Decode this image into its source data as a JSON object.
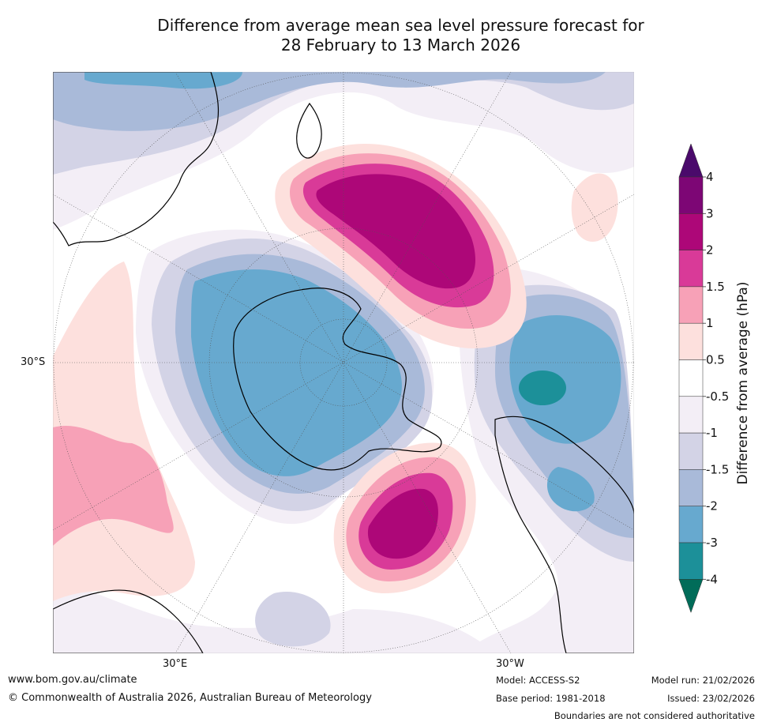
{
  "title": {
    "line1": "Difference from average mean sea level pressure forecast for",
    "line2": "28 February to 13 March 2026"
  },
  "map": {
    "lat_label": "30°S",
    "lon_labels": [
      "30°E",
      "30°W"
    ]
  },
  "legend": {
    "label": "Difference from average (hPa)",
    "ticks": [
      "4",
      "3",
      "2",
      "1.5",
      "1",
      "0.5",
      "-0.5",
      "-1",
      "-1.5",
      "-2",
      "-3",
      "-4"
    ],
    "colors": {
      "gt4": "#4a0a6b",
      "3_4": "#7d0675",
      "2_3": "#ad0778",
      "1.5_2": "#d93a98",
      "1_1.5": "#f7a1b7",
      "0.5_1": "#fde0dd",
      "-0.5_0.5": "#ffffff",
      "-1_-0.5": "#f3eef6",
      "-1.5_-1": "#d3d3e6",
      "-2_-1.5": "#a9bad9",
      "-3_-2": "#67a9cf",
      "-4_-3": "#1c9099",
      "lt-4": "#016c59"
    }
  },
  "footer": {
    "website": "www.bom.gov.au/climate",
    "copyright": "© Commonwealth of Australia 2026, Australian Bureau of Meteorology",
    "model": "Model: ACCESS-S2",
    "base_period": "Base period: 1981-2018",
    "model_run": "Model run: 21/02/2026",
    "issued": "Issued: 23/02/2026",
    "disclaimer": "Boundaries are not considered authoritative"
  }
}
